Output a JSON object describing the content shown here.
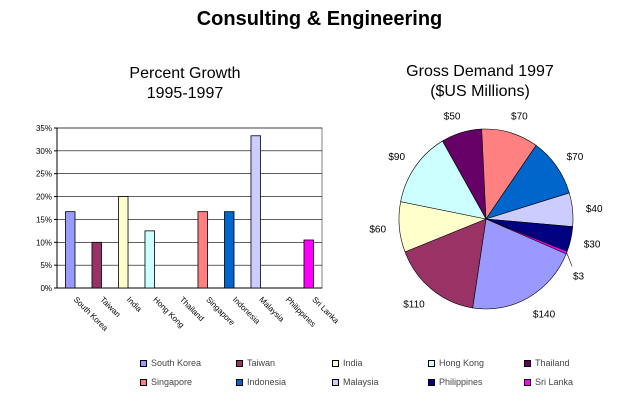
{
  "title": "Consulting & Engineering",
  "colors": {
    "South Korea": "#9999ff",
    "Taiwan": "#993366",
    "India": "#ffffcc",
    "Hong Kong": "#ccffff",
    "Thailand": "#660066",
    "Singapore": "#ff8080",
    "Indonesia": "#0066cc",
    "Malaysia": "#ccccff",
    "Philippines": "#000080",
    "Sri Lanka": "#ff00ff"
  },
  "chart_data": [
    {
      "type": "bar",
      "title": "Percent Growth\n1995-1997",
      "title_lines": [
        "Percent Growth",
        "1995-1997"
      ],
      "categories": [
        "South Korea",
        "Taiwan",
        "India",
        "Hong Kong",
        "Thailand",
        "Singapore",
        "Indonesia",
        "Malaysia",
        "Philippines",
        "Sri Lanka"
      ],
      "values": [
        16.7,
        10,
        20,
        12.5,
        0,
        16.7,
        16.7,
        33.3,
        0,
        10.5
      ],
      "ylim": [
        0,
        35
      ],
      "yticks": [
        "0%",
        "5%",
        "10%",
        "15%",
        "20%",
        "25%",
        "30%",
        "35%"
      ],
      "xlabel": "",
      "ylabel": "",
      "grid": true,
      "legend": "bottom"
    },
    {
      "type": "pie",
      "title": "Gross Demand 1997\n($US Millions)",
      "title_lines": [
        "Gross Demand 1997",
        "($US Millions)"
      ],
      "labels": [
        "Thailand",
        "Singapore",
        "Indonesia",
        "Malaysia",
        "Philippines",
        "Sri Lanka",
        "South Korea",
        "Taiwan",
        "India",
        "Hong Kong"
      ],
      "values": [
        50,
        70,
        70,
        40,
        30,
        3,
        140,
        110,
        60,
        90
      ],
      "data_labels": [
        "$50",
        "$70",
        "$70",
        "$40",
        "$30",
        "$3",
        "$140",
        "$110",
        "$60",
        "$90"
      ]
    }
  ]
}
